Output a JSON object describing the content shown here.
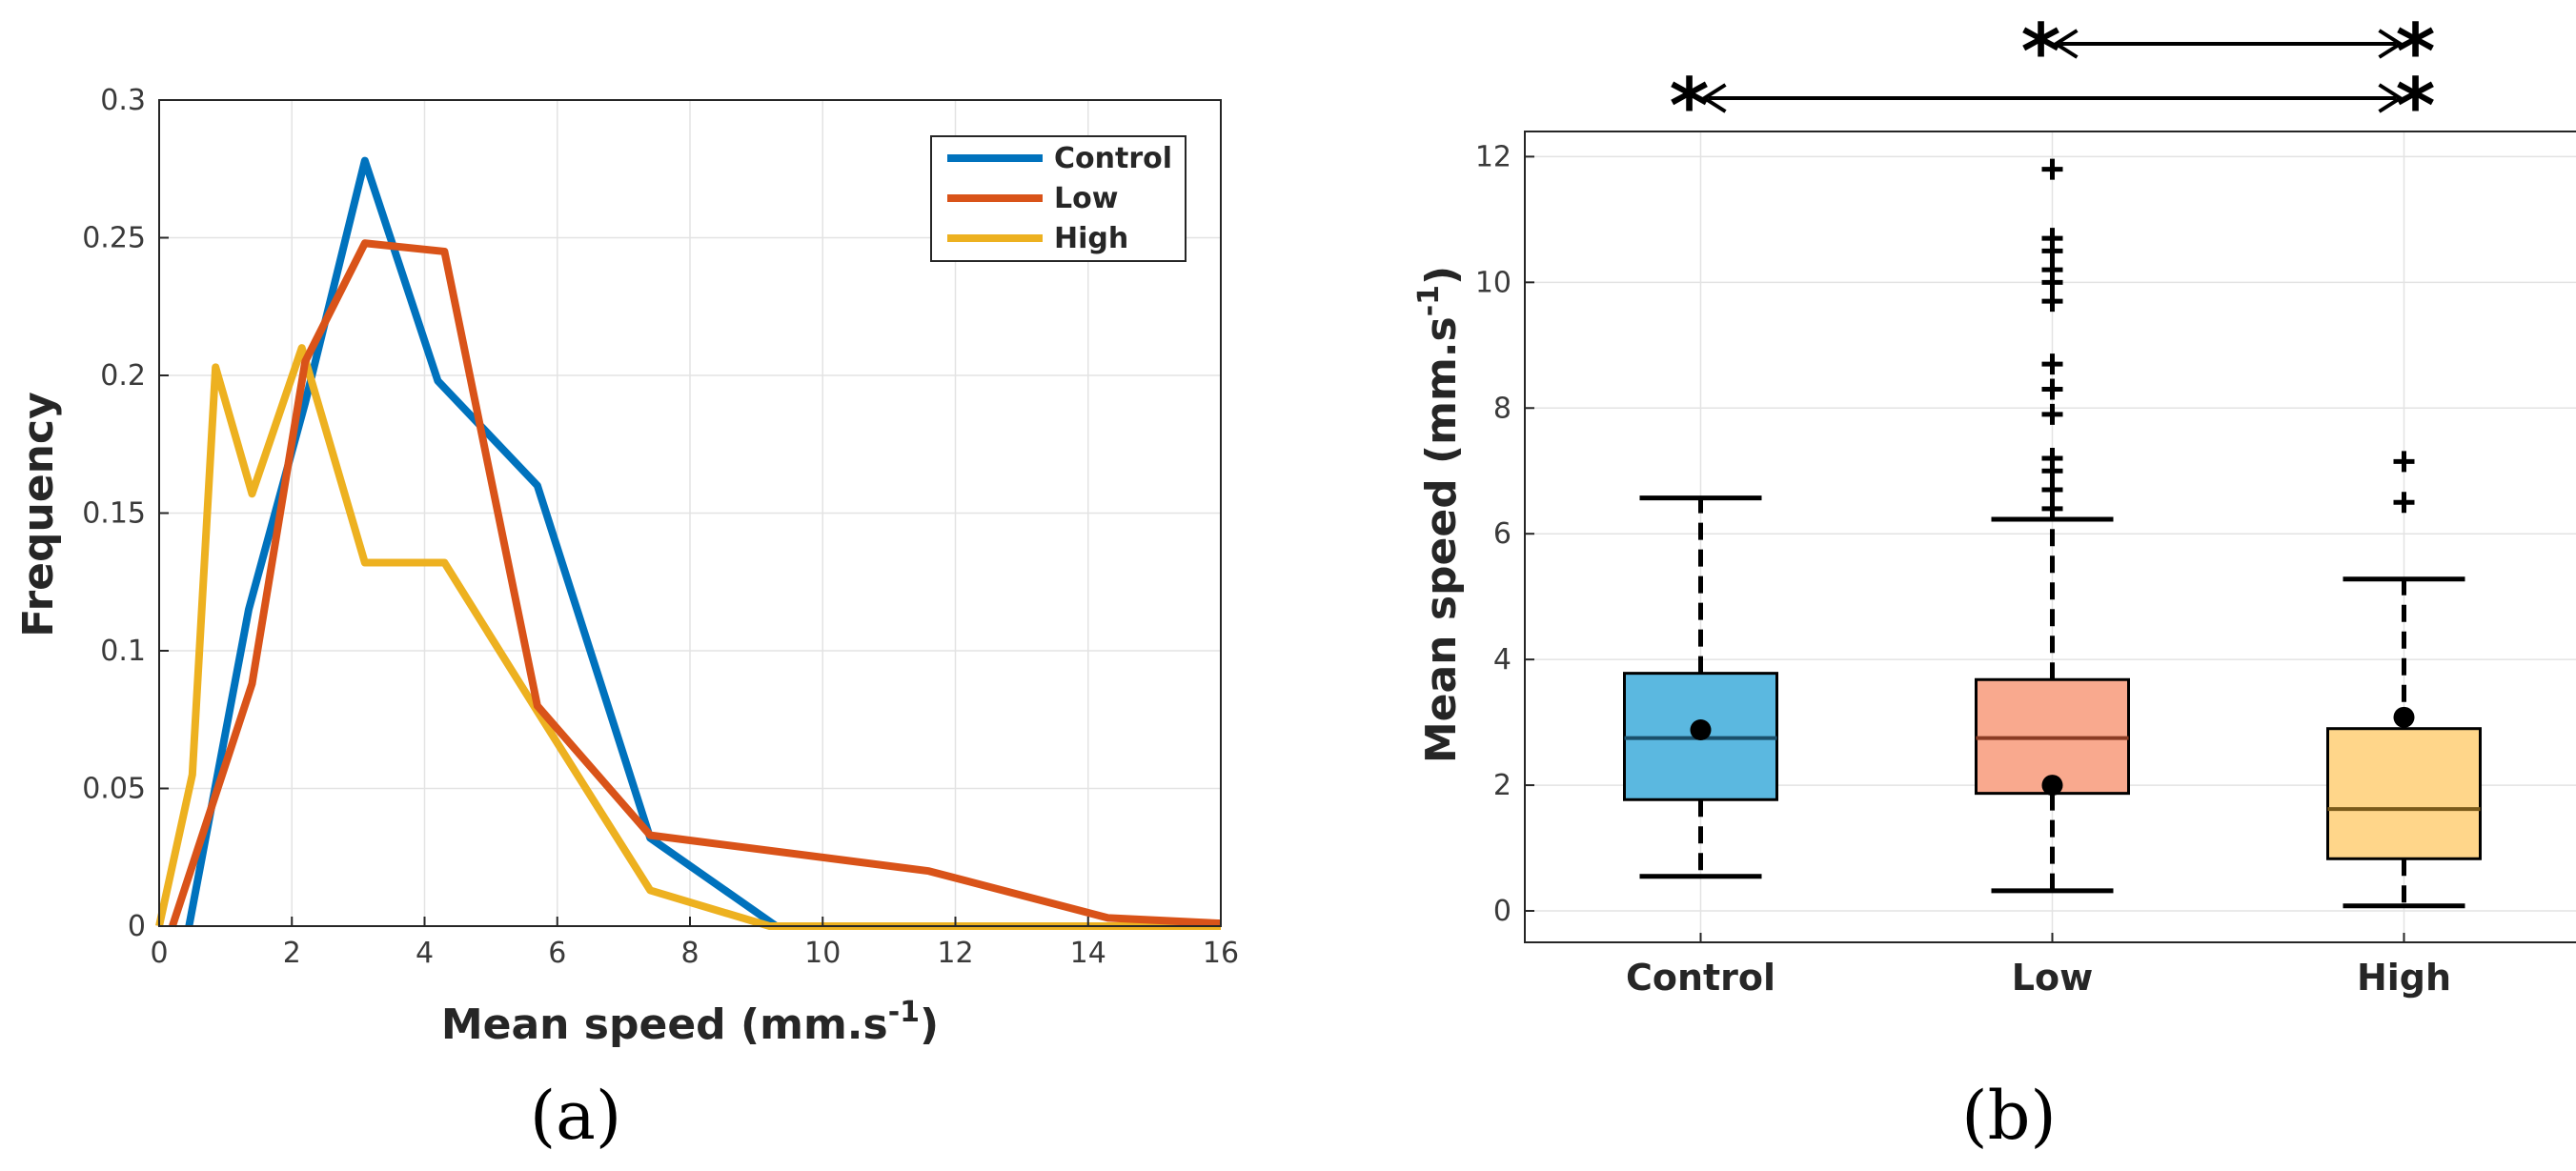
{
  "chart_data": [
    {
      "type": "line",
      "panel_label": "(a)",
      "title": "",
      "xlabel": "Mean speed (mm.s",
      "xlabel_sup": "-1",
      "xlabel_end": ")",
      "ylabel": "Frequency",
      "xlim": [
        0,
        16
      ],
      "ylim": [
        0,
        0.3
      ],
      "xticks": [
        0,
        2,
        4,
        6,
        8,
        10,
        12,
        14,
        16
      ],
      "yticks": [
        0,
        0.05,
        0.1,
        0.15,
        0.2,
        0.25,
        0.3
      ],
      "xtick_labels": [
        "0",
        "2",
        "4",
        "6",
        "8",
        "10",
        "12",
        "14",
        "16"
      ],
      "ytick_labels": [
        "0",
        "0.05",
        "0.1",
        "0.15",
        "0.2",
        "0.25",
        "0.3"
      ],
      "grid": true,
      "legend_position": "top-right",
      "series": [
        {
          "name": "Control",
          "color": "#0072BD",
          "x": [
            0.45,
            1.35,
            2.2,
            3.1,
            4.2,
            5.7,
            7.4,
            9.3,
            16
          ],
          "y": [
            0,
            0.115,
            0.19,
            0.278,
            0.198,
            0.16,
            0.032,
            0,
            0
          ]
        },
        {
          "name": "Low",
          "color": "#D95319",
          "x": [
            0.2,
            1.4,
            2.2,
            3.1,
            4.3,
            5.7,
            7.4,
            11.6,
            14.3,
            16
          ],
          "y": [
            0,
            0.088,
            0.205,
            0.248,
            0.245,
            0.08,
            0.033,
            0.02,
            0.003,
            0.001
          ]
        },
        {
          "name": "High",
          "color": "#EDB120",
          "x": [
            0,
            0.5,
            0.85,
            1.4,
            2.15,
            3.1,
            4.3,
            5.7,
            7.4,
            9.2,
            16
          ],
          "y": [
            0,
            0.055,
            0.203,
            0.157,
            0.21,
            0.132,
            0.132,
            0.078,
            0.013,
            0,
            0
          ]
        }
      ]
    },
    {
      "type": "box",
      "panel_label": "(b)",
      "title": "",
      "xlabel": "",
      "ylabel": "Mean speed (mm.s",
      "ylabel_sup": "-1",
      "ylabel_end": ")",
      "ylim": [
        -0.5,
        12.4
      ],
      "yticks": [
        0,
        2,
        4,
        6,
        8,
        10,
        12
      ],
      "ytick_labels": [
        "0",
        "2",
        "4",
        "6",
        "8",
        "10",
        "12"
      ],
      "categories": [
        "Control",
        "Low",
        "High"
      ],
      "grid": true,
      "boxes": [
        {
          "name": "Control",
          "fill": "#5BB8E0",
          "median_color": "#1a4f6a",
          "q1": 1.77,
          "median": 2.75,
          "q3": 3.78,
          "whisker_low": 0.55,
          "whisker_high": 6.57,
          "mean": 2.88,
          "outliers": []
        },
        {
          "name": "Low",
          "fill": "#F9A98E",
          "median_color": "#8a3b24",
          "q1": 1.87,
          "median": 2.75,
          "q3": 3.68,
          "whisker_low": 0.32,
          "whisker_high": 6.23,
          "mean": 2.0,
          "outliers": [
            6.4,
            6.7,
            7.0,
            7.2,
            7.9,
            8.3,
            8.7,
            9.7,
            10.0,
            10.2,
            10.5,
            10.7,
            11.8
          ]
        },
        {
          "name": "High",
          "fill": "#FFD68A",
          "median_color": "#7a5a1a",
          "q1": 0.83,
          "median": 1.62,
          "q3": 2.9,
          "whisker_low": 0.08,
          "whisker_high": 5.28,
          "mean": 3.08,
          "outliers": [
            6.5,
            7.15
          ]
        }
      ],
      "significance": [
        {
          "from": "Low",
          "to": "High",
          "marker": "*"
        },
        {
          "from": "Control",
          "to": "High",
          "marker": "*"
        }
      ]
    }
  ]
}
